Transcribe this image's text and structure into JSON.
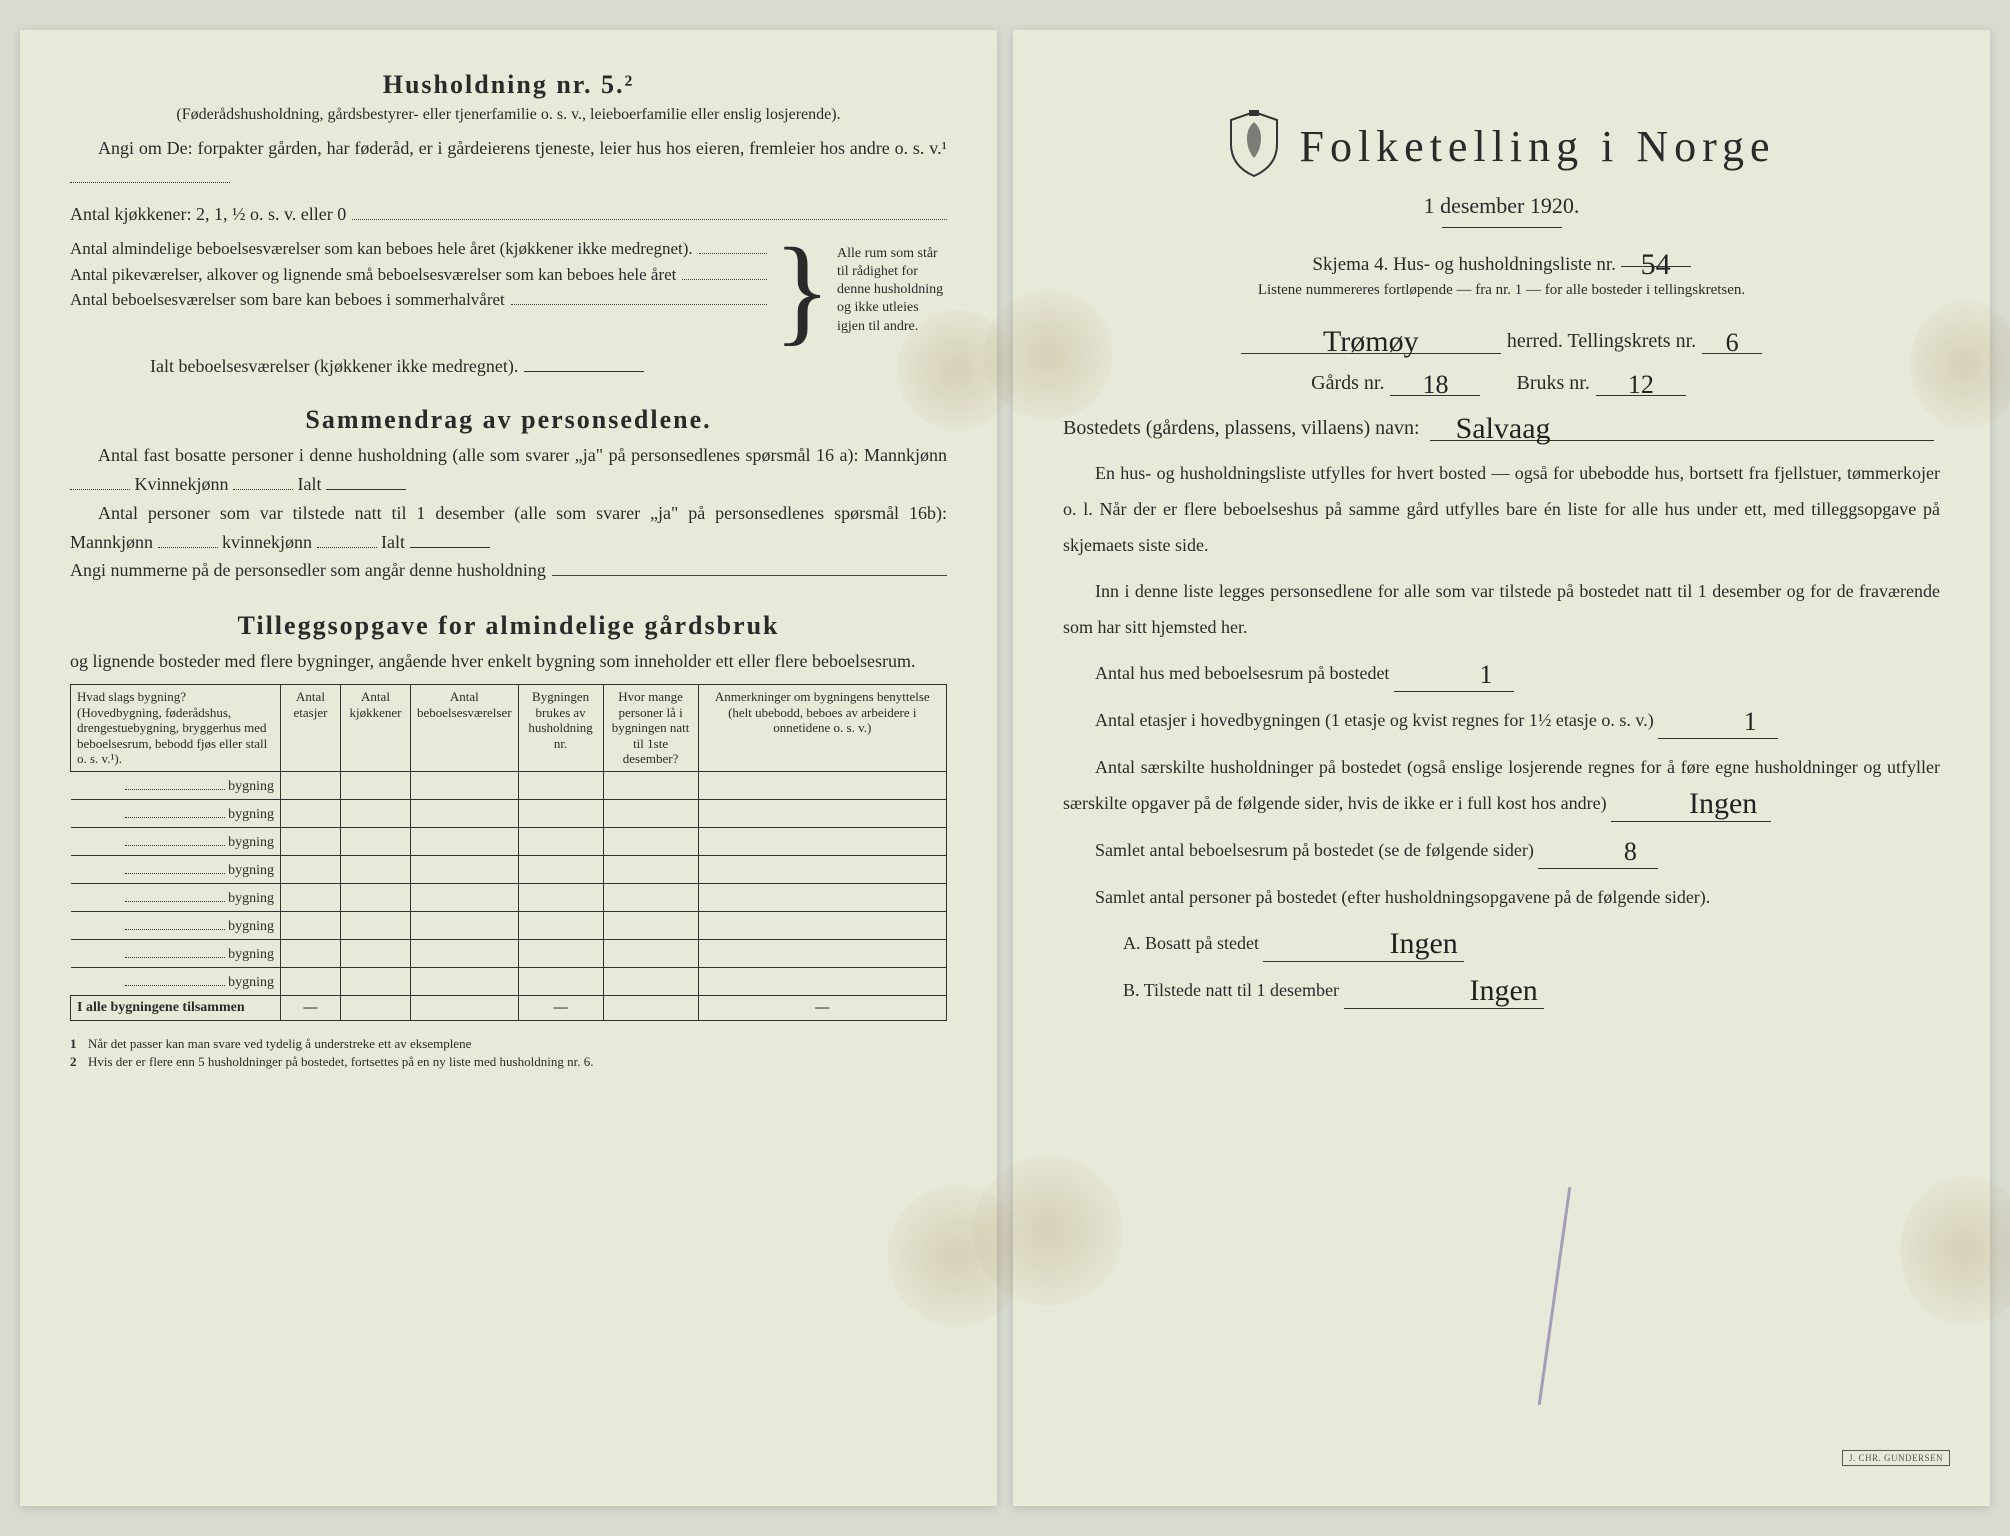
{
  "left": {
    "h5_title": "Husholdning nr. 5.²",
    "h5_sub": "(Føderådshusholdning, gårdsbestyrer- eller tjenerfamilie o. s. v., leieboerfamilie eller enslig losjerende).",
    "h5_p1": "Angi om De: forpakter gården, har føderåd, er i gårdeierens tjeneste, leier hus hos eieren, fremleier hos andre o. s. v.¹",
    "kitchen_label": "Antal kjøkkener: 2, 1, ½ o. s. v. eller 0",
    "brace_lines": [
      "Antal almindelige beboelsesværelser som kan beboes hele året (kjøkkener ikke medregnet).",
      "Antal pikeværelser, alkover og lignende små beboelsesværelser som kan beboes hele året",
      "Antal beboelsesværelser som bare kan beboes i sommerhalvåret"
    ],
    "brace_right": "Alle rum som står til rådighet for denne husholdning og ikke utleies igjen til andre.",
    "ialt_label": "Ialt beboelsesværelser (kjøkkener ikke medregnet).",
    "summary_title": "Sammendrag av personsedlene.",
    "summary_p1a": "Antal fast bosatte personer i denne husholdning (alle som svarer „ja\" på personsedlenes spørsmål 16 a): Mannkjønn",
    "summary_p1b": "Kvinnekjønn",
    "summary_p1c": "Ialt",
    "summary_p2a": "Antal personer som var tilstede natt til 1 desember (alle som svarer „ja\" på personsedlenes spørsmål 16b): Mannkjønn",
    "summary_p2b": "kvinnekjønn",
    "summary_p2c": "Ialt",
    "summary_p3": "Angi nummerne på de personsedler som angår denne husholdning",
    "tillegg_title": "Tilleggsopgave for almindelige gårdsbruk",
    "tillegg_sub": "og lignende bosteder med flere bygninger, angående hver enkelt bygning som inneholder ett eller flere beboelsesrum.",
    "table": {
      "headers": [
        "Hvad slags bygning?\n(Hovedbygning, føderådshus, drengestuebygning, bryggerhus med beboelsesrum, bebodd fjøs eller stall o. s. v.¹).",
        "Antal etasjer",
        "Antal kjøkkener",
        "Antal beboelsesværelser",
        "Bygningen brukes av husholdning nr.",
        "Hvor mange personer lå i bygningen natt til 1ste desember?",
        "Anmerkninger om bygningens benyttelse (helt ubebodd, beboes av arbeidere i onnetidene o. s. v.)"
      ],
      "row_suffix": "bygning",
      "row_count": 8,
      "total_label": "I alle bygningene tilsammen",
      "dash": "—"
    },
    "footnotes": [
      "Når det passer kan man svare ved tydelig å understreke ett av eksemplene",
      "Hvis der er flere enn 5 husholdninger på bostedet, fortsettes på en ny liste med husholdning nr. 6."
    ]
  },
  "right": {
    "title": "Folketelling i Norge",
    "date": "1 desember 1920.",
    "schema": "Skjema 4.  Hus- og husholdningsliste nr.",
    "list_nr": "54",
    "note": "Listene nummereres fortløpende — fra nr. 1 — for alle bosteder i tellingskretsen.",
    "herred_value": "Trømøy",
    "herred_label": "herred.   Tellingskrets nr.",
    "krets_nr": "6",
    "gards_label": "Gårds nr.",
    "gards_nr": "18",
    "bruks_label": "Bruks nr.",
    "bruks_nr": "12",
    "bosted_label": "Bostedets (gårdens, plassens, villaens) navn:",
    "bosted_value": "Salvaag",
    "para1": "En hus- og husholdningsliste utfylles for hvert bosted — også for ubebodde hus, bortsett fra fjellstuer, tømmerkojer o. l.  Når der er flere beboelseshus på samme gård utfylles bare én liste for alle hus under ett, med tilleggsopgave på skjemaets siste side.",
    "para2": "Inn i denne liste legges personsedlene for alle som var tilstede på bostedet natt til 1 desember og for de fraværende som har sitt hjemsted her.",
    "q1_label": "Antal hus med beboelsesrum på bostedet",
    "q1_val": "1",
    "q2_label_a": "Antal etasjer i hovedbygningen (1 etasje og kvist regnes for 1½ etasje o. s. v.)",
    "q2_val": "1",
    "q3_label": "Antal særskilte husholdninger på bostedet (også enslige losjerende regnes for å føre egne husholdninger og utfyller særskilte opgaver på de følgende sider, hvis de ikke er i full kost hos andre)",
    "q3_val": "Ingen",
    "q4_label": "Samlet antal beboelsesrum på bostedet (se de følgende sider)",
    "q4_val": "8",
    "q5_label": "Samlet antal personer på bostedet (efter husholdningsopgavene på de følgende sider).",
    "qA_label": "A.  Bosatt på stedet",
    "qA_val": "Ingen",
    "qB_label": "B.  Tilstede natt til 1 desember",
    "qB_val": "Ingen",
    "stamp": "J. CHR. GUNDERSEN"
  },
  "colors": {
    "paper": "#e8ead9",
    "ink": "#2a2a2a",
    "handwriting": "#222",
    "stain": "rgba(160,130,80,0.25)"
  }
}
